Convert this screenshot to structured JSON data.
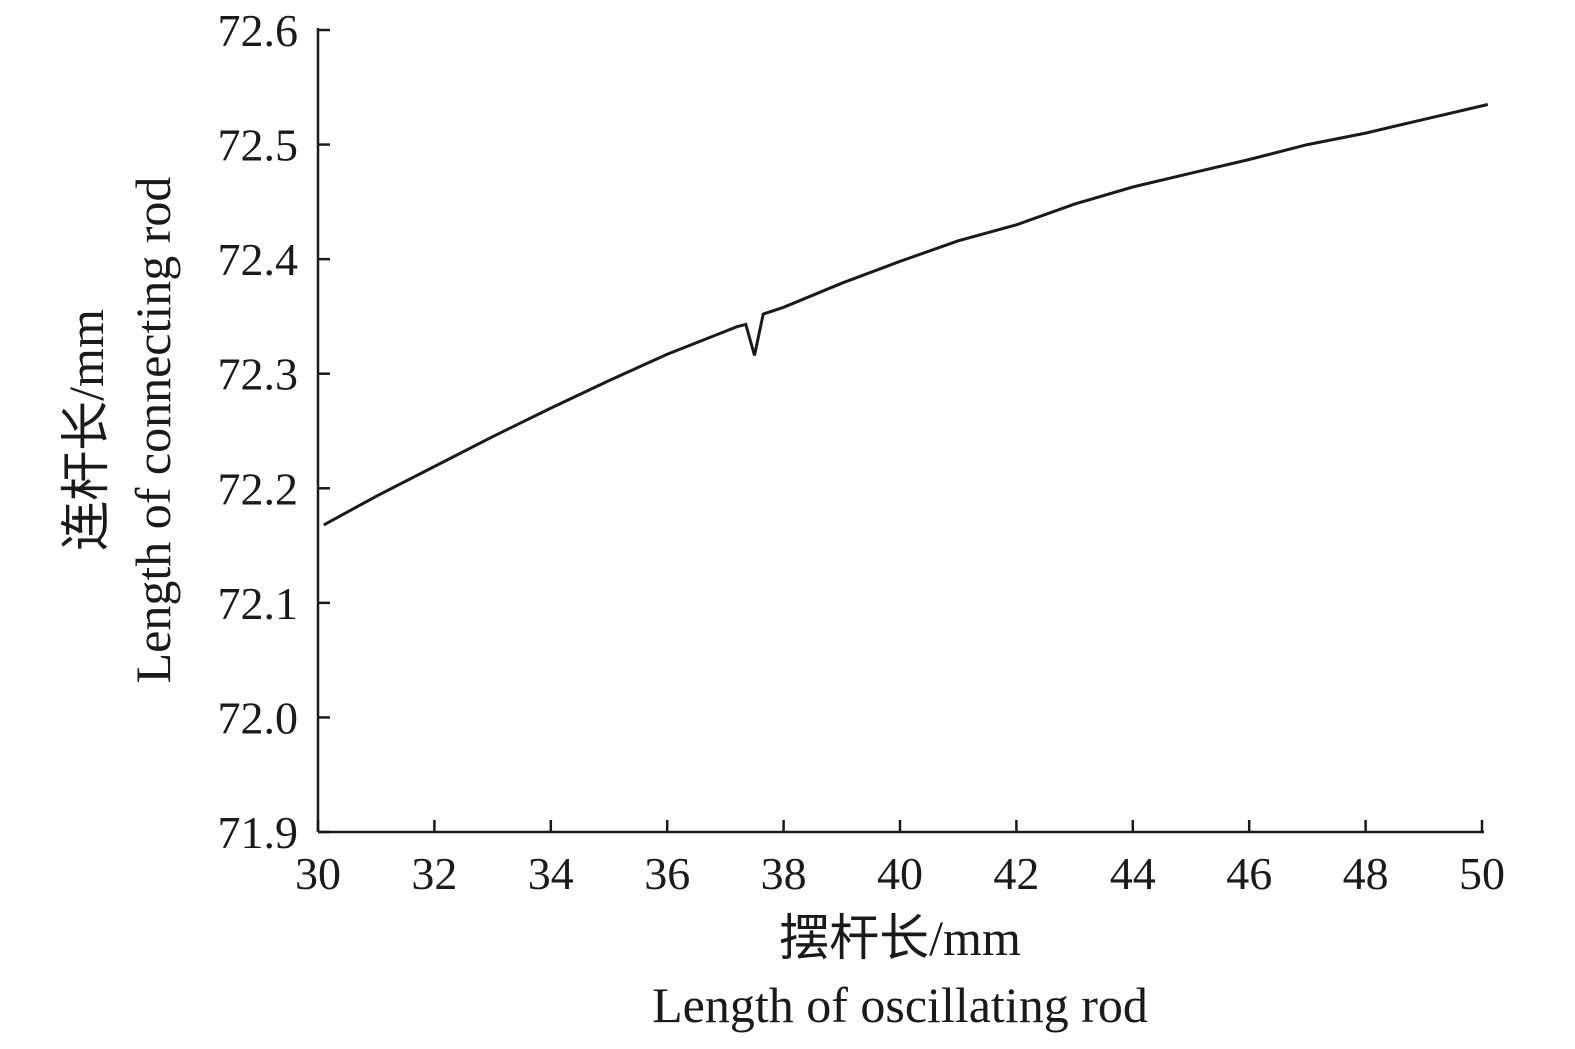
{
  "chart_data": {
    "type": "line",
    "title": "",
    "xlabel": "摆杆长/mm",
    "xlabel_en": "Length of oscillating rod",
    "ylabel": "连杆长/mm",
    "ylabel_en": "Length of connecting rod",
    "xlim": [
      30,
      50
    ],
    "ylim": [
      71.9,
      72.6
    ],
    "xticks": [
      "30",
      "32",
      "34",
      "36",
      "38",
      "40",
      "42",
      "44",
      "46",
      "48",
      "50"
    ],
    "yticks": [
      "71.9",
      "72.0",
      "72.1",
      "72.2",
      "72.3",
      "72.4",
      "72.5",
      "72.6"
    ],
    "grid": false,
    "line_color": "#1a1a1a",
    "series": [
      {
        "x": [
          30.1,
          31.0,
          32.0,
          33.0,
          34.0,
          35.0,
          36.0,
          36.8,
          37.2,
          37.35,
          37.5,
          37.65,
          38.0,
          39.0,
          40.0,
          41.0,
          42.0,
          43.0,
          44.0,
          45.0,
          46.0,
          47.0,
          48.0,
          49.0,
          50.1
        ],
        "y": [
          72.168,
          72.193,
          72.219,
          72.245,
          72.27,
          72.294,
          72.317,
          72.333,
          72.341,
          72.343,
          72.316,
          72.352,
          72.358,
          72.379,
          72.398,
          72.416,
          72.43,
          72.448,
          72.463,
          72.475,
          72.487,
          72.5,
          72.51,
          72.522,
          72.535
        ]
      }
    ]
  }
}
